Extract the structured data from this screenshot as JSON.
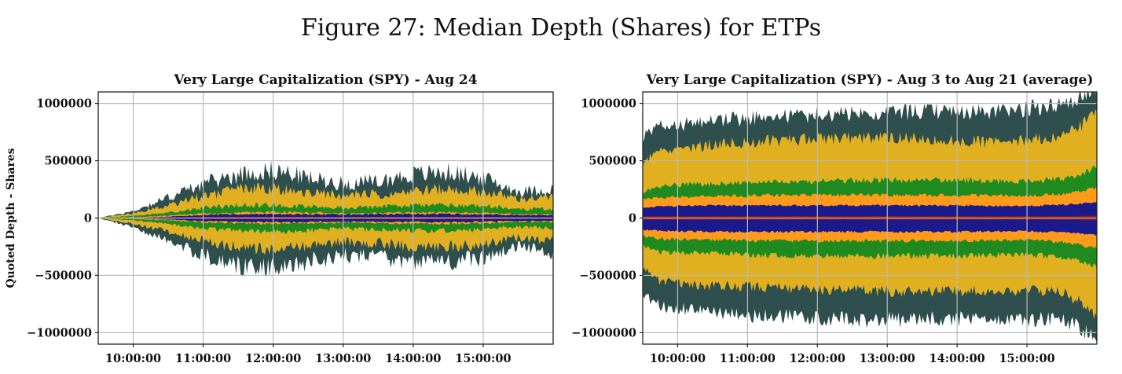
{
  "figure_title": "Figure 27: Median Depth (Shares) for ETPs",
  "y_axis_label": "Quoted Depth - Shares",
  "colors": {
    "outer": "#2f4f4f",
    "gold": "#e0b020",
    "green": "#1f8a1f",
    "orange": "#ff9a1a",
    "blue": "#1a1a8c",
    "red": "#8b1a1a",
    "grid": "#b9b9b9"
  },
  "chart_data": [
    {
      "type": "area",
      "title": "Very Large Capitalization (SPY) - Aug 24",
      "xlabel": "",
      "ylabel": "Quoted Depth - Shares",
      "ylim": [
        -1100000,
        1100000
      ],
      "yticks": [
        1000000,
        500000,
        0,
        -500000,
        -1000000
      ],
      "ytick_labels": [
        "1000000",
        "500000",
        "0",
        "−500000",
        "−1000000"
      ],
      "xlim": [
        9.5,
        16.0
      ],
      "xticks": [
        10,
        11,
        12,
        13,
        14,
        15
      ],
      "xtick_labels": [
        "10:00:00",
        "11:00:00",
        "12:00:00",
        "13:00:00",
        "14:00:00",
        "15:00:00"
      ],
      "x": [
        9.5,
        10.0,
        10.5,
        11.0,
        11.5,
        12.0,
        12.5,
        13.0,
        13.5,
        14.0,
        14.5,
        15.0,
        15.5,
        16.0
      ],
      "series": [
        {
          "name": "outer",
          "upper": [
            0,
            60000,
            180000,
            300000,
            380000,
            420000,
            350000,
            300000,
            320000,
            380000,
            400000,
            350000,
            230000,
            250000
          ],
          "lower": [
            0,
            -80000,
            -200000,
            -320000,
            -420000,
            -420000,
            -380000,
            -330000,
            -350000,
            -380000,
            -380000,
            -350000,
            -250000,
            -300000
          ]
        },
        {
          "name": "gold",
          "upper": [
            0,
            40000,
            110000,
            190000,
            250000,
            260000,
            220000,
            200000,
            210000,
            240000,
            250000,
            230000,
            170000,
            180000
          ],
          "lower": [
            0,
            -50000,
            -120000,
            -200000,
            -260000,
            -270000,
            -240000,
            -210000,
            -220000,
            -250000,
            -250000,
            -230000,
            -170000,
            -200000
          ]
        },
        {
          "name": "green",
          "upper": [
            0,
            20000,
            45000,
            90000,
            110000,
            115000,
            100000,
            90000,
            95000,
            110000,
            115000,
            105000,
            75000,
            80000
          ],
          "lower": [
            0,
            -20000,
            -50000,
            -90000,
            -110000,
            -120000,
            -110000,
            -95000,
            -100000,
            -110000,
            -110000,
            -100000,
            -75000,
            -85000
          ]
        },
        {
          "name": "orange",
          "upper": [
            0,
            8000,
            20000,
            38000,
            45000,
            50000,
            45000,
            40000,
            42000,
            48000,
            50000,
            45000,
            33000,
            35000
          ],
          "lower": [
            0,
            -8000,
            -20000,
            -38000,
            -45000,
            -50000,
            -45000,
            -40000,
            -42000,
            -48000,
            -50000,
            -45000,
            -33000,
            -35000
          ]
        },
        {
          "name": "blue",
          "upper": [
            0,
            4000,
            12000,
            28000,
            32000,
            35000,
            33000,
            30000,
            32000,
            35000,
            36000,
            33000,
            25000,
            26000
          ],
          "lower": [
            0,
            -4000,
            -12000,
            -28000,
            -32000,
            -35000,
            -33000,
            -30000,
            -32000,
            -35000,
            -36000,
            -33000,
            -25000,
            -26000
          ]
        },
        {
          "name": "red",
          "upper": [
            0,
            2000,
            4000,
            8000,
            9000,
            10000,
            9000,
            9000,
            9000,
            10000,
            10000,
            9000,
            7000,
            7000
          ],
          "lower": [
            0,
            -2000,
            -4000,
            -8000,
            -9000,
            -10000,
            -9000,
            -9000,
            -9000,
            -10000,
            -10000,
            -9000,
            -7000,
            -7000
          ]
        }
      ]
    },
    {
      "type": "area",
      "title": "Very Large Capitalization (SPY) - Aug 3 to Aug 21 (average)",
      "xlabel": "",
      "ylabel": "",
      "ylim": [
        -1100000,
        1100000
      ],
      "yticks": [
        1000000,
        500000,
        0,
        -500000,
        -1000000
      ],
      "ytick_labels": [
        "1000000",
        "500000",
        "0",
        "−500000",
        "−1000000"
      ],
      "xlim": [
        9.5,
        16.0
      ],
      "xticks": [
        10,
        11,
        12,
        13,
        14,
        15
      ],
      "xtick_labels": [
        "10:00:00",
        "11:00:00",
        "12:00:00",
        "13:00:00",
        "14:00:00",
        "15:00:00"
      ],
      "x": [
        9.5,
        9.75,
        10.0,
        10.5,
        11.0,
        11.5,
        12.0,
        12.5,
        13.0,
        13.5,
        14.0,
        14.5,
        15.0,
        15.25,
        15.5,
        15.75,
        16.0
      ],
      "series": [
        {
          "name": "outer",
          "upper": [
            700000,
            800000,
            810000,
            850000,
            870000,
            890000,
            900000,
            910000,
            910000,
            930000,
            930000,
            920000,
            950000,
            980000,
            1000000,
            1050000,
            1100000
          ],
          "lower": [
            -640000,
            -780000,
            -790000,
            -820000,
            -850000,
            -860000,
            -870000,
            -890000,
            -890000,
            -880000,
            -880000,
            -870000,
            -880000,
            -890000,
            -900000,
            -940000,
            -1100000
          ]
        },
        {
          "name": "gold",
          "upper": [
            480000,
            600000,
            610000,
            640000,
            660000,
            680000,
            690000,
            700000,
            700000,
            690000,
            680000,
            660000,
            680000,
            700000,
            720000,
            800000,
            950000
          ],
          "lower": [
            -440000,
            -560000,
            -570000,
            -590000,
            -600000,
            -610000,
            -620000,
            -630000,
            -640000,
            -640000,
            -640000,
            -630000,
            -630000,
            -640000,
            -650000,
            -720000,
            -900000
          ]
        },
        {
          "name": "green",
          "upper": [
            220000,
            280000,
            290000,
            300000,
            310000,
            320000,
            320000,
            330000,
            330000,
            330000,
            330000,
            320000,
            320000,
            330000,
            340000,
            380000,
            450000
          ],
          "lower": [
            -240000,
            -300000,
            -300000,
            -310000,
            -320000,
            -330000,
            -330000,
            -330000,
            -330000,
            -330000,
            -330000,
            -320000,
            -320000,
            -330000,
            -340000,
            -370000,
            -420000
          ]
        },
        {
          "name": "orange",
          "upper": [
            160000,
            180000,
            185000,
            190000,
            195000,
            200000,
            200000,
            200000,
            200000,
            200000,
            200000,
            195000,
            195000,
            200000,
            210000,
            230000,
            260000
          ],
          "lower": [
            -160000,
            -180000,
            -185000,
            -190000,
            -195000,
            -200000,
            -200000,
            -200000,
            -200000,
            -200000,
            -200000,
            -195000,
            -195000,
            -200000,
            -210000,
            -230000,
            -260000
          ]
        },
        {
          "name": "blue",
          "upper": [
            90000,
            100000,
            105000,
            110000,
            110000,
            110000,
            110000,
            110000,
            110000,
            110000,
            110000,
            105000,
            105000,
            110000,
            115000,
            125000,
            140000
          ],
          "lower": [
            -100000,
            -110000,
            -115000,
            -120000,
            -120000,
            -120000,
            -120000,
            -120000,
            -120000,
            -120000,
            -120000,
            -115000,
            -115000,
            -120000,
            -125000,
            -135000,
            -150000
          ]
        },
        {
          "name": "red",
          "upper": [
            15000,
            16000,
            16000,
            16000,
            16000,
            16000,
            16000,
            16000,
            16000,
            16000,
            16000,
            16000,
            16000,
            16000,
            16000,
            18000,
            20000
          ],
          "lower": [
            -15000,
            -16000,
            -16000,
            -16000,
            -16000,
            -16000,
            -16000,
            -16000,
            -16000,
            -16000,
            -16000,
            -16000,
            -16000,
            -16000,
            -16000,
            -18000,
            -20000
          ]
        }
      ]
    }
  ]
}
